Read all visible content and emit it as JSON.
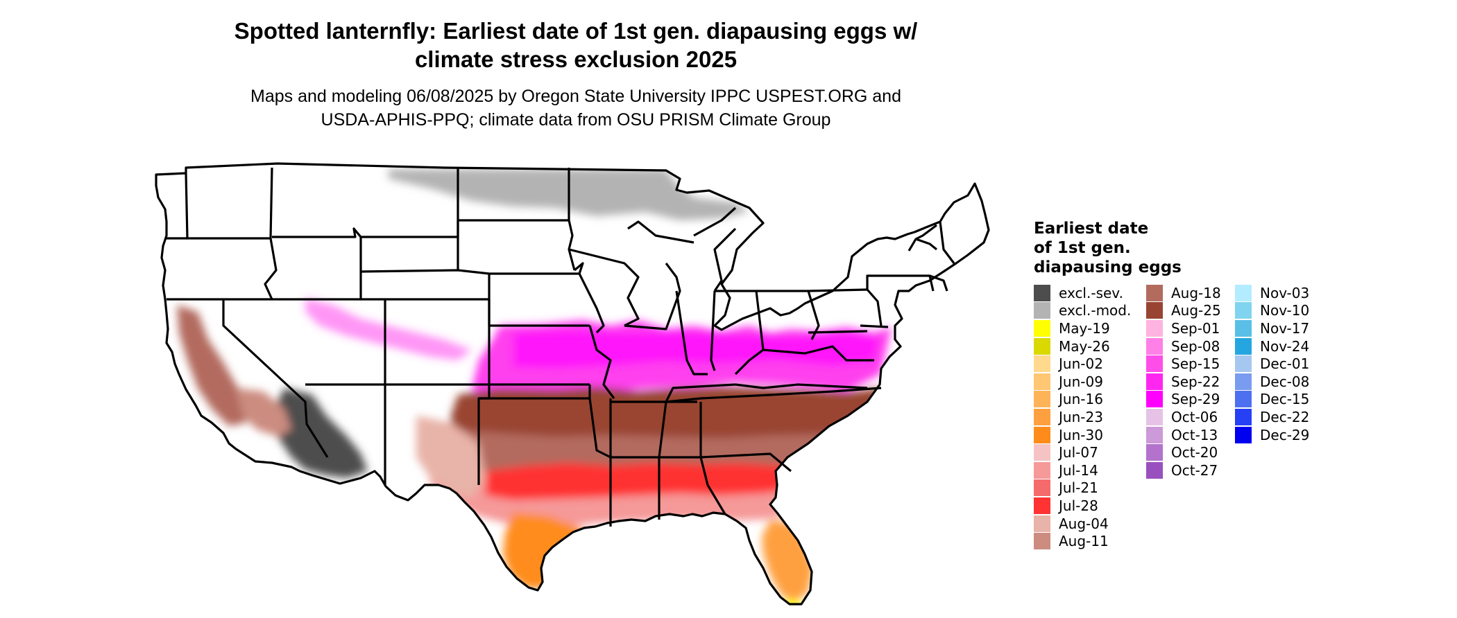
{
  "title": {
    "line1": "Spotted lanternfly: Earliest date of 1st gen. diapausing eggs w/",
    "line2": "climate stress exclusion 2025"
  },
  "subtitle": {
    "line1": "Maps and modeling 06/08/2025 by Oregon State University IPPC USPEST.ORG and",
    "line2": "USDA-APHIS-PPQ; climate data from OSU PRISM Climate Group"
  },
  "legend": {
    "title_lines": [
      "Earliest date",
      "of 1st gen.",
      "diapausing eggs"
    ],
    "columns": [
      [
        {
          "label": "excl.-sev.",
          "color": "#4d4d4d"
        },
        {
          "label": "excl.-mod.",
          "color": "#b3b3b3"
        },
        {
          "label": "May-19",
          "color": "#ffff00"
        },
        {
          "label": "May-26",
          "color": "#d9d900"
        },
        {
          "label": "Jun-02",
          "color": "#ffd98c"
        },
        {
          "label": "Jun-09",
          "color": "#ffc673"
        },
        {
          "label": "Jun-16",
          "color": "#ffb359"
        },
        {
          "label": "Jun-23",
          "color": "#ffa040"
        },
        {
          "label": "Jun-30",
          "color": "#ff8c1a"
        },
        {
          "label": "Jul-07",
          "color": "#f5c3c3"
        },
        {
          "label": "Jul-14",
          "color": "#f59999"
        },
        {
          "label": "Jul-21",
          "color": "#f56b6b"
        },
        {
          "label": "Jul-28",
          "color": "#ff3333"
        },
        {
          "label": "Aug-04",
          "color": "#e8b3a8"
        },
        {
          "label": "Aug-11",
          "color": "#cc8c80"
        }
      ],
      [
        {
          "label": "Aug-18",
          "color": "#b36b5e"
        },
        {
          "label": "Aug-25",
          "color": "#994433"
        },
        {
          "label": "Sep-01",
          "color": "#ffb3e0"
        },
        {
          "label": "Sep-08",
          "color": "#ff80e6"
        },
        {
          "label": "Sep-15",
          "color": "#ff4dea"
        },
        {
          "label": "Sep-22",
          "color": "#ff26f0"
        },
        {
          "label": "Sep-29",
          "color": "#ff00ff"
        },
        {
          "label": "Oct-06",
          "color": "#e6c3e6"
        },
        {
          "label": "Oct-13",
          "color": "#cc99d9"
        },
        {
          "label": "Oct-20",
          "color": "#b373cc"
        },
        {
          "label": "Oct-27",
          "color": "#9950bf"
        }
      ],
      [
        {
          "label": "Nov-03",
          "color": "#b3ecff"
        },
        {
          "label": "Nov-10",
          "color": "#80d4f0"
        },
        {
          "label": "Nov-17",
          "color": "#59bfe6"
        },
        {
          "label": "Nov-24",
          "color": "#26a6e0"
        },
        {
          "label": "Dec-01",
          "color": "#a6c8f0"
        },
        {
          "label": "Dec-08",
          "color": "#7a9cf0"
        },
        {
          "label": "Dec-15",
          "color": "#4d70f0"
        },
        {
          "label": "Dec-22",
          "color": "#2640f5"
        },
        {
          "label": "Dec-29",
          "color": "#0000f0"
        }
      ]
    ]
  }
}
